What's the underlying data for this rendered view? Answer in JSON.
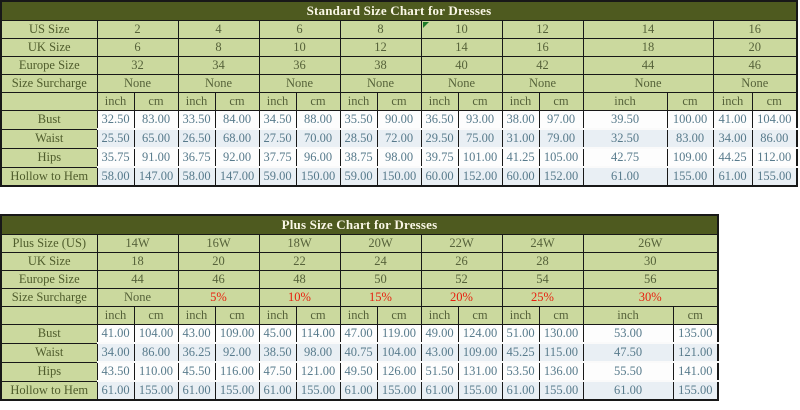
{
  "colors": {
    "header_bg": "#4e5a1f",
    "header_text": "#faf7e6",
    "label_cell_bg": "#cbd99e",
    "label_text": "#4f5c2c",
    "value_text": "#587b8c",
    "alt_row_bg": "#e9eff4",
    "surcharge_red": "#e8200e",
    "marker_green": "#1e7a28",
    "border_dark": "#181818"
  },
  "tables": [
    {
      "title": "Standard Size Chart for Dresses",
      "attribute_rows": [
        {
          "label": "US Size",
          "values": [
            "2",
            "4",
            "6",
            "8",
            "10",
            "12",
            "14",
            "16"
          ],
          "marker_index": 4
        },
        {
          "label": "UK Size",
          "values": [
            "6",
            "8",
            "10",
            "12",
            "14",
            "16",
            "18",
            "20"
          ]
        },
        {
          "label": "Europe Size",
          "values": [
            "32",
            "34",
            "36",
            "38",
            "40",
            "42",
            "44",
            "46"
          ]
        },
        {
          "label": "Size Surcharge",
          "values": [
            "None",
            "None",
            "None",
            "None",
            "None",
            "None",
            "None",
            "None"
          ],
          "red": [
            false,
            false,
            false,
            false,
            false,
            false,
            false,
            false
          ]
        }
      ],
      "unit_row": {
        "label": "",
        "units": [
          "inch",
          "cm"
        ]
      },
      "measurement_rows": [
        {
          "label": "Bust",
          "inch": [
            "32.50",
            "33.50",
            "34.50",
            "35.50",
            "36.50",
            "38.00",
            "39.50",
            "41.00"
          ],
          "cm": [
            "83.00",
            "84.00",
            "88.00",
            "90.00",
            "93.00",
            "97.00",
            "100.00",
            "104.00"
          ]
        },
        {
          "label": "Waist",
          "inch": [
            "25.50",
            "26.50",
            "27.50",
            "28.50",
            "29.50",
            "31.00",
            "32.50",
            "34.00"
          ],
          "cm": [
            "65.00",
            "68.00",
            "70.00",
            "72.00",
            "75.00",
            "79.00",
            "83.00",
            "86.00"
          ]
        },
        {
          "label": "Hips",
          "inch": [
            "35.75",
            "36.75",
            "37.75",
            "38.75",
            "39.75",
            "41.25",
            "42.75",
            "44.25"
          ],
          "cm": [
            "91.00",
            "92.00",
            "96.00",
            "98.00",
            "101.00",
            "105.00",
            "109.00",
            "112.00"
          ]
        },
        {
          "label": "Hollow to Hem",
          "inch": [
            "58.00",
            "58.00",
            "59.00",
            "59.00",
            "60.00",
            "60.00",
            "61.00",
            "61.00"
          ],
          "cm": [
            "147.00",
            "147.00",
            "150.00",
            "150.00",
            "152.00",
            "152.00",
            "155.00",
            "155.00"
          ]
        }
      ]
    },
    {
      "title": "Plus Size Chart for Dresses",
      "attribute_rows": [
        {
          "label": "Plus Size (US)",
          "values": [
            "14W",
            "16W",
            "18W",
            "20W",
            "22W",
            "24W",
            "26W"
          ]
        },
        {
          "label": "UK Size",
          "values": [
            "18",
            "20",
            "22",
            "24",
            "26",
            "28",
            "30"
          ]
        },
        {
          "label": "Europe Size",
          "values": [
            "44",
            "46",
            "48",
            "50",
            "52",
            "54",
            "56"
          ]
        },
        {
          "label": "Size Surcharge",
          "values": [
            "None",
            "5%",
            "10%",
            "15%",
            "20%",
            "25%",
            "30%"
          ],
          "red": [
            false,
            true,
            true,
            true,
            true,
            true,
            true
          ]
        }
      ],
      "unit_row": {
        "label": "",
        "units": [
          "inch",
          "cm"
        ]
      },
      "measurement_rows": [
        {
          "label": "Bust",
          "inch": [
            "41.00",
            "43.00",
            "45.00",
            "47.00",
            "49.00",
            "51.00",
            "53.00"
          ],
          "cm": [
            "104.00",
            "109.00",
            "114.00",
            "119.00",
            "124.00",
            "130.00",
            "135.00"
          ]
        },
        {
          "label": "Waist",
          "inch": [
            "34.00",
            "36.25",
            "38.50",
            "40.75",
            "43.00",
            "45.25",
            "47.50"
          ],
          "cm": [
            "86.00",
            "92.00",
            "98.00",
            "104.00",
            "109.00",
            "115.00",
            "121.00"
          ]
        },
        {
          "label": "Hips",
          "inch": [
            "43.50",
            "45.50",
            "47.50",
            "49.50",
            "51.50",
            "53.50",
            "55.50"
          ],
          "cm": [
            "110.00",
            "116.00",
            "121.00",
            "126.00",
            "131.00",
            "136.00",
            "141.00"
          ]
        },
        {
          "label": "Hollow to Hem",
          "inch": [
            "61.00",
            "61.00",
            "61.00",
            "61.00",
            "61.00",
            "61.00",
            "61.00"
          ],
          "cm": [
            "155.00",
            "155.00",
            "155.00",
            "155.00",
            "155.00",
            "155.00",
            "155.00"
          ]
        }
      ]
    }
  ]
}
